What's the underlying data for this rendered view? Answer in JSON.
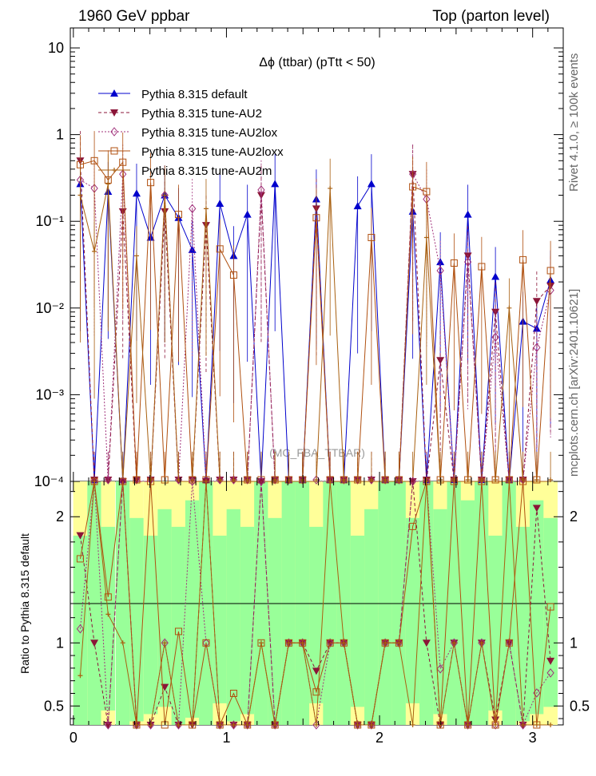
{
  "header": {
    "left": "1960 GeV ppbar",
    "right": "Top (parton level)"
  },
  "side": {
    "rivet": "Rivet 4.1.0, ≥ 100k events",
    "mcplots": "mcplots.cern.ch [arXiv:2401.10621]"
  },
  "chart_data": {
    "type": "line",
    "title": "Δϕ (ttbar) (pTtt < 50)",
    "watermark": "(MC_FBA_TTBAR)",
    "xlabel": "",
    "ylabel_ratio": "Ratio to Pythia 8.315 default",
    "xlim": [
      -0.02,
      3.2
    ],
    "ylim": [
      0.0001,
      17
    ],
    "ratio_ylim": [
      0.35,
      2.28
    ],
    "yscale": "log",
    "x_ticks": [
      "0",
      "1",
      "2",
      "3"
    ],
    "y_ticks": [
      "10⁻⁴",
      "10⁻³",
      "10⁻²",
      "10⁻¹",
      "1",
      "10"
    ],
    "ratio_ticks": [
      "0.5",
      "1",
      "2"
    ],
    "x": [
      0.045,
      0.137,
      0.227,
      0.323,
      0.413,
      0.505,
      0.597,
      0.687,
      0.777,
      0.867,
      0.957,
      1.047,
      1.137,
      1.227,
      1.317,
      1.407,
      1.497,
      1.587,
      1.677,
      1.767,
      1.857,
      1.947,
      2.037,
      2.127,
      2.217,
      2.307,
      2.397,
      2.487,
      2.577,
      2.667,
      2.757,
      2.847,
      2.937,
      3.027,
      3.117
    ],
    "series": [
      {
        "name": "Pythia 8.315 default",
        "color": "#0000cc",
        "values": [
          0.27,
          0.0001,
          0.22,
          0.0001,
          0.21,
          0.065,
          0.2,
          0.11,
          0.047,
          0.0001,
          0.16,
          0.04,
          0.12,
          0.0001,
          0.27,
          0.0001,
          0.0001,
          0.18,
          0.0001,
          0.0001,
          0.15,
          0.27,
          0.0001,
          0.0001,
          0.13,
          0.0001,
          0.034,
          0.0001,
          0.12,
          0.0001,
          0.023,
          0.0001,
          0.007,
          0.0058,
          0.021
        ]
      },
      {
        "name": "Pythia 8.315 tune-AU2",
        "color": "#8b1538",
        "values": [
          0.5,
          0.0001,
          0.0001,
          0.13,
          0.0001,
          0.0001,
          0.13,
          0.0001,
          0.0001,
          0.09,
          0.0001,
          0.0001,
          0.0001,
          0.2,
          0.0001,
          0.0001,
          0.0001,
          0.14,
          0.0001,
          0.0001,
          0.0001,
          0.0001,
          0.0001,
          0.0001,
          0.35,
          0.0001,
          0.0025,
          0.0001,
          0.04,
          0.0001,
          0.009,
          0.0001,
          0.0001,
          0.012,
          0.018
        ]
      },
      {
        "name": "Pythia 8.315 tune-AU2lox",
        "color": "#a0307a",
        "values": [
          0.3,
          0.24,
          0.0001,
          0.35,
          0.0001,
          0.0001,
          0.2,
          0.0001,
          0.14,
          0.0001,
          0.0001,
          0.0001,
          0.0001,
          0.23,
          0.0001,
          0.0001,
          0.0001,
          0.0001,
          0.0001,
          0.0001,
          0.0001,
          0.0001,
          0.0001,
          0.0001,
          0.35,
          0.18,
          0.027,
          0.0001,
          0.034,
          0.0001,
          0.0046,
          0.0001,
          0.0001,
          0.0035,
          0.016
        ]
      },
      {
        "name": "Pythia 8.315 tune-AU2loxx",
        "color": "#b05010",
        "values": [
          0.45,
          0.5,
          0.3,
          0.48,
          0.0001,
          0.28,
          0.0001,
          0.12,
          0.0001,
          0.0001,
          0.048,
          0.024,
          0.0001,
          0.0001,
          0.0001,
          0.0001,
          0.0001,
          0.11,
          0.0001,
          0.0001,
          0.0001,
          0.065,
          0.0001,
          0.0001,
          0.25,
          0.22,
          0.0001,
          0.033,
          0.0001,
          0.03,
          0.0001,
          0.0001,
          0.036,
          0.0001,
          0.027
        ]
      },
      {
        "name": "Pythia 8.315 tune-AU2m",
        "color": "#a86010",
        "values": [
          0.2,
          0.045,
          0.27,
          0.0001,
          0.04,
          0.0001,
          0.2,
          0.0001,
          0.0001,
          0.14,
          0.0001,
          0.0001,
          0.0001,
          0.0001,
          0.0001,
          0.0001,
          0.0001,
          0.0001,
          0.24,
          0.0001,
          0.0001,
          0.0001,
          0.0001,
          0.0001,
          0.0001,
          0.065,
          0.0001,
          0.0001,
          0.0001,
          0.0001,
          0.0001,
          0.01,
          0.0001,
          0.0001,
          0.0001
        ]
      }
    ],
    "legend_position": "top-left"
  }
}
